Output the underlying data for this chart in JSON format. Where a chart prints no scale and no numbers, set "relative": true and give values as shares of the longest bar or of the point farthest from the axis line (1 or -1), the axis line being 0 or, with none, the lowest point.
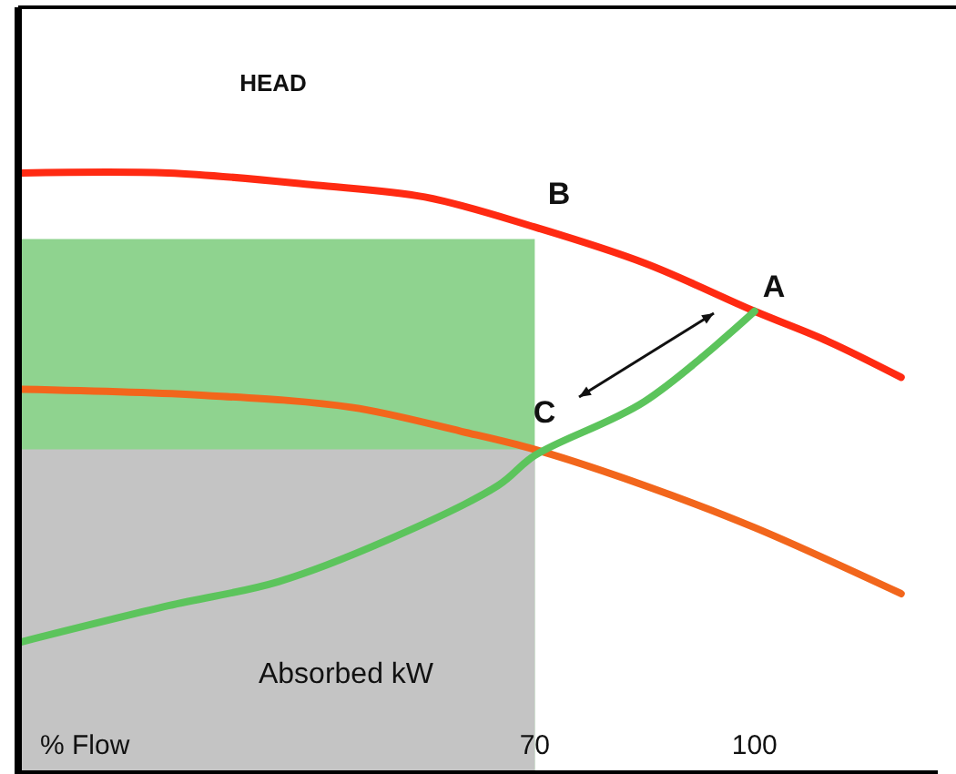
{
  "chart_data": {
    "type": "line",
    "relative": true,
    "xlabel": "% Flow",
    "xlim": [
      0,
      125
    ],
    "xticks": [
      70,
      100
    ],
    "series": [
      {
        "type": "area",
        "color": "#8fd38f",
        "x": [
          0,
          70
        ],
        "values": [
          0.89,
          0.89
        ]
      },
      {
        "type": "area",
        "color": "#c4c4c4",
        "x": [
          0,
          70
        ],
        "values": [
          0.54,
          0.54
        ]
      },
      {
        "color": "#ff2a12",
        "x": [
          0,
          20,
          40,
          55,
          70,
          85,
          100,
          110,
          120
        ],
        "values": [
          1.0,
          1.0,
          0.98,
          0.96,
          0.91,
          0.85,
          0.77,
          0.72,
          0.66
        ]
      },
      {
        "color": "#f2661c",
        "x": [
          0,
          25,
          45,
          60,
          70,
          85,
          100,
          120
        ],
        "values": [
          0.64,
          0.63,
          0.61,
          0.57,
          0.54,
          0.48,
          0.41,
          0.3
        ]
      },
      {
        "color": "#5cc45c",
        "x": [
          0,
          20,
          35,
          50,
          65,
          70,
          85,
          100
        ],
        "values": [
          0.22,
          0.28,
          0.32,
          0.39,
          0.48,
          0.53,
          0.62,
          0.77
        ]
      }
    ],
    "annotations": [
      "HEAD",
      "Absorbed kW",
      "B",
      "A",
      "C"
    ]
  }
}
